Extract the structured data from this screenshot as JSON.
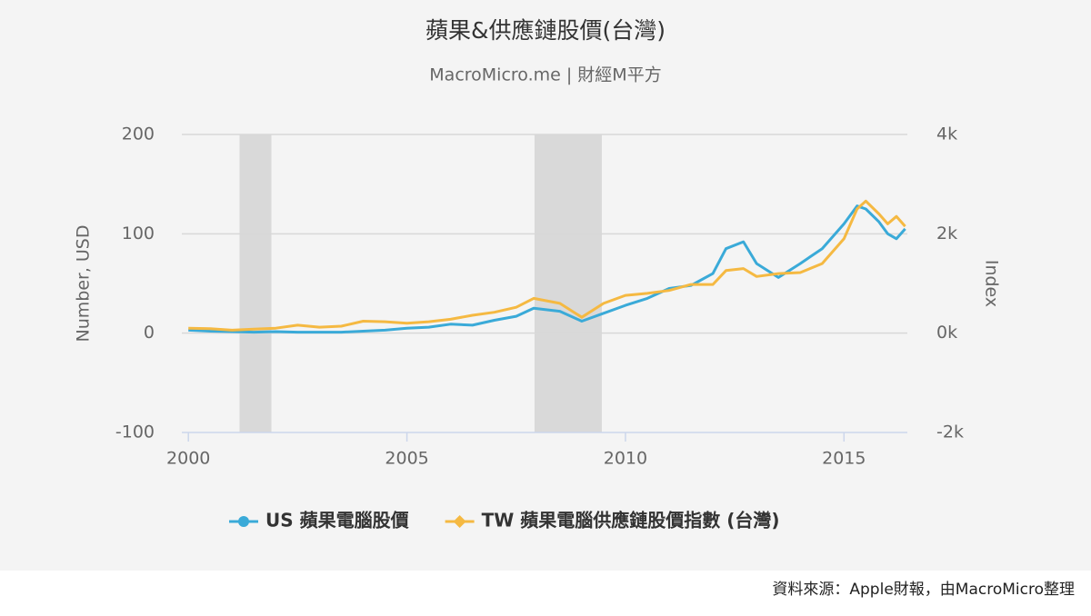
{
  "chart_data": {
    "type": "line",
    "title": "蘋果&供應鏈股價(台灣)",
    "subtitle": "MacroMicro.me | 財經M平方",
    "ylabel": "Number, USD",
    "y2label": "Index",
    "source": "資料來源：Apple財報，由MacroMicro整理",
    "x": [
      2000,
      2000.5,
      2001,
      2001.5,
      2002,
      2002.5,
      2003,
      2003.5,
      2004,
      2004.5,
      2005,
      2005.5,
      2006,
      2006.5,
      2007,
      2007.5,
      2007.9,
      2008.5,
      2009,
      2009.5,
      2010,
      2010.5,
      2011,
      2011.5,
      2012,
      2012.3,
      2012.7,
      2013,
      2013.5,
      2014,
      2014.5,
      2015,
      2015.3,
      2015.5,
      2015.8,
      2016,
      2016.2,
      2016.4
    ],
    "series": [
      {
        "name": "US 蘋果電腦股價",
        "color": "#3aaad8",
        "marker": "circle",
        "axis": "y",
        "values": [
          3,
          2,
          1.5,
          1,
          1.5,
          1,
          1,
          1,
          2,
          3,
          5,
          6,
          9,
          8,
          13,
          17,
          25,
          22,
          12,
          20,
          28,
          35,
          45,
          48,
          60,
          85,
          92,
          70,
          56,
          70,
          85,
          110,
          128,
          125,
          112,
          100,
          95,
          105
        ]
      },
      {
        "name": "TW 蘋果電腦供應鏈股價指數 (台灣)",
        "color": "#f5b942",
        "marker": "diamond",
        "axis": "y2",
        "values": [
          100,
          90,
          60,
          80,
          100,
          160,
          120,
          140,
          240,
          230,
          200,
          230,
          280,
          360,
          420,
          520,
          700,
          600,
          320,
          600,
          760,
          800,
          860,
          980,
          980,
          1260,
          1300,
          1140,
          1200,
          1220,
          1400,
          1900,
          2500,
          2660,
          2400,
          2200,
          2350,
          2150
        ]
      }
    ],
    "bands": [
      [
        2001.17,
        2001.9
      ],
      [
        2007.92,
        2009.46
      ]
    ],
    "band_color": "#d9d9d9",
    "xlim": [
      1999.85,
      2016.45
    ],
    "xticks": [
      2000,
      2005,
      2010,
      2015
    ],
    "ylim": [
      -100,
      200
    ],
    "yticks": [
      -100,
      0,
      100,
      200
    ],
    "y2lim": [
      -2000,
      4000
    ],
    "y2ticks": [
      {
        "value": -2000,
        "label": "-2k"
      },
      {
        "value": 0,
        "label": "0k"
      },
      {
        "value": 2000,
        "label": "2k"
      },
      {
        "value": 4000,
        "label": "4k"
      }
    ],
    "grid": true
  }
}
